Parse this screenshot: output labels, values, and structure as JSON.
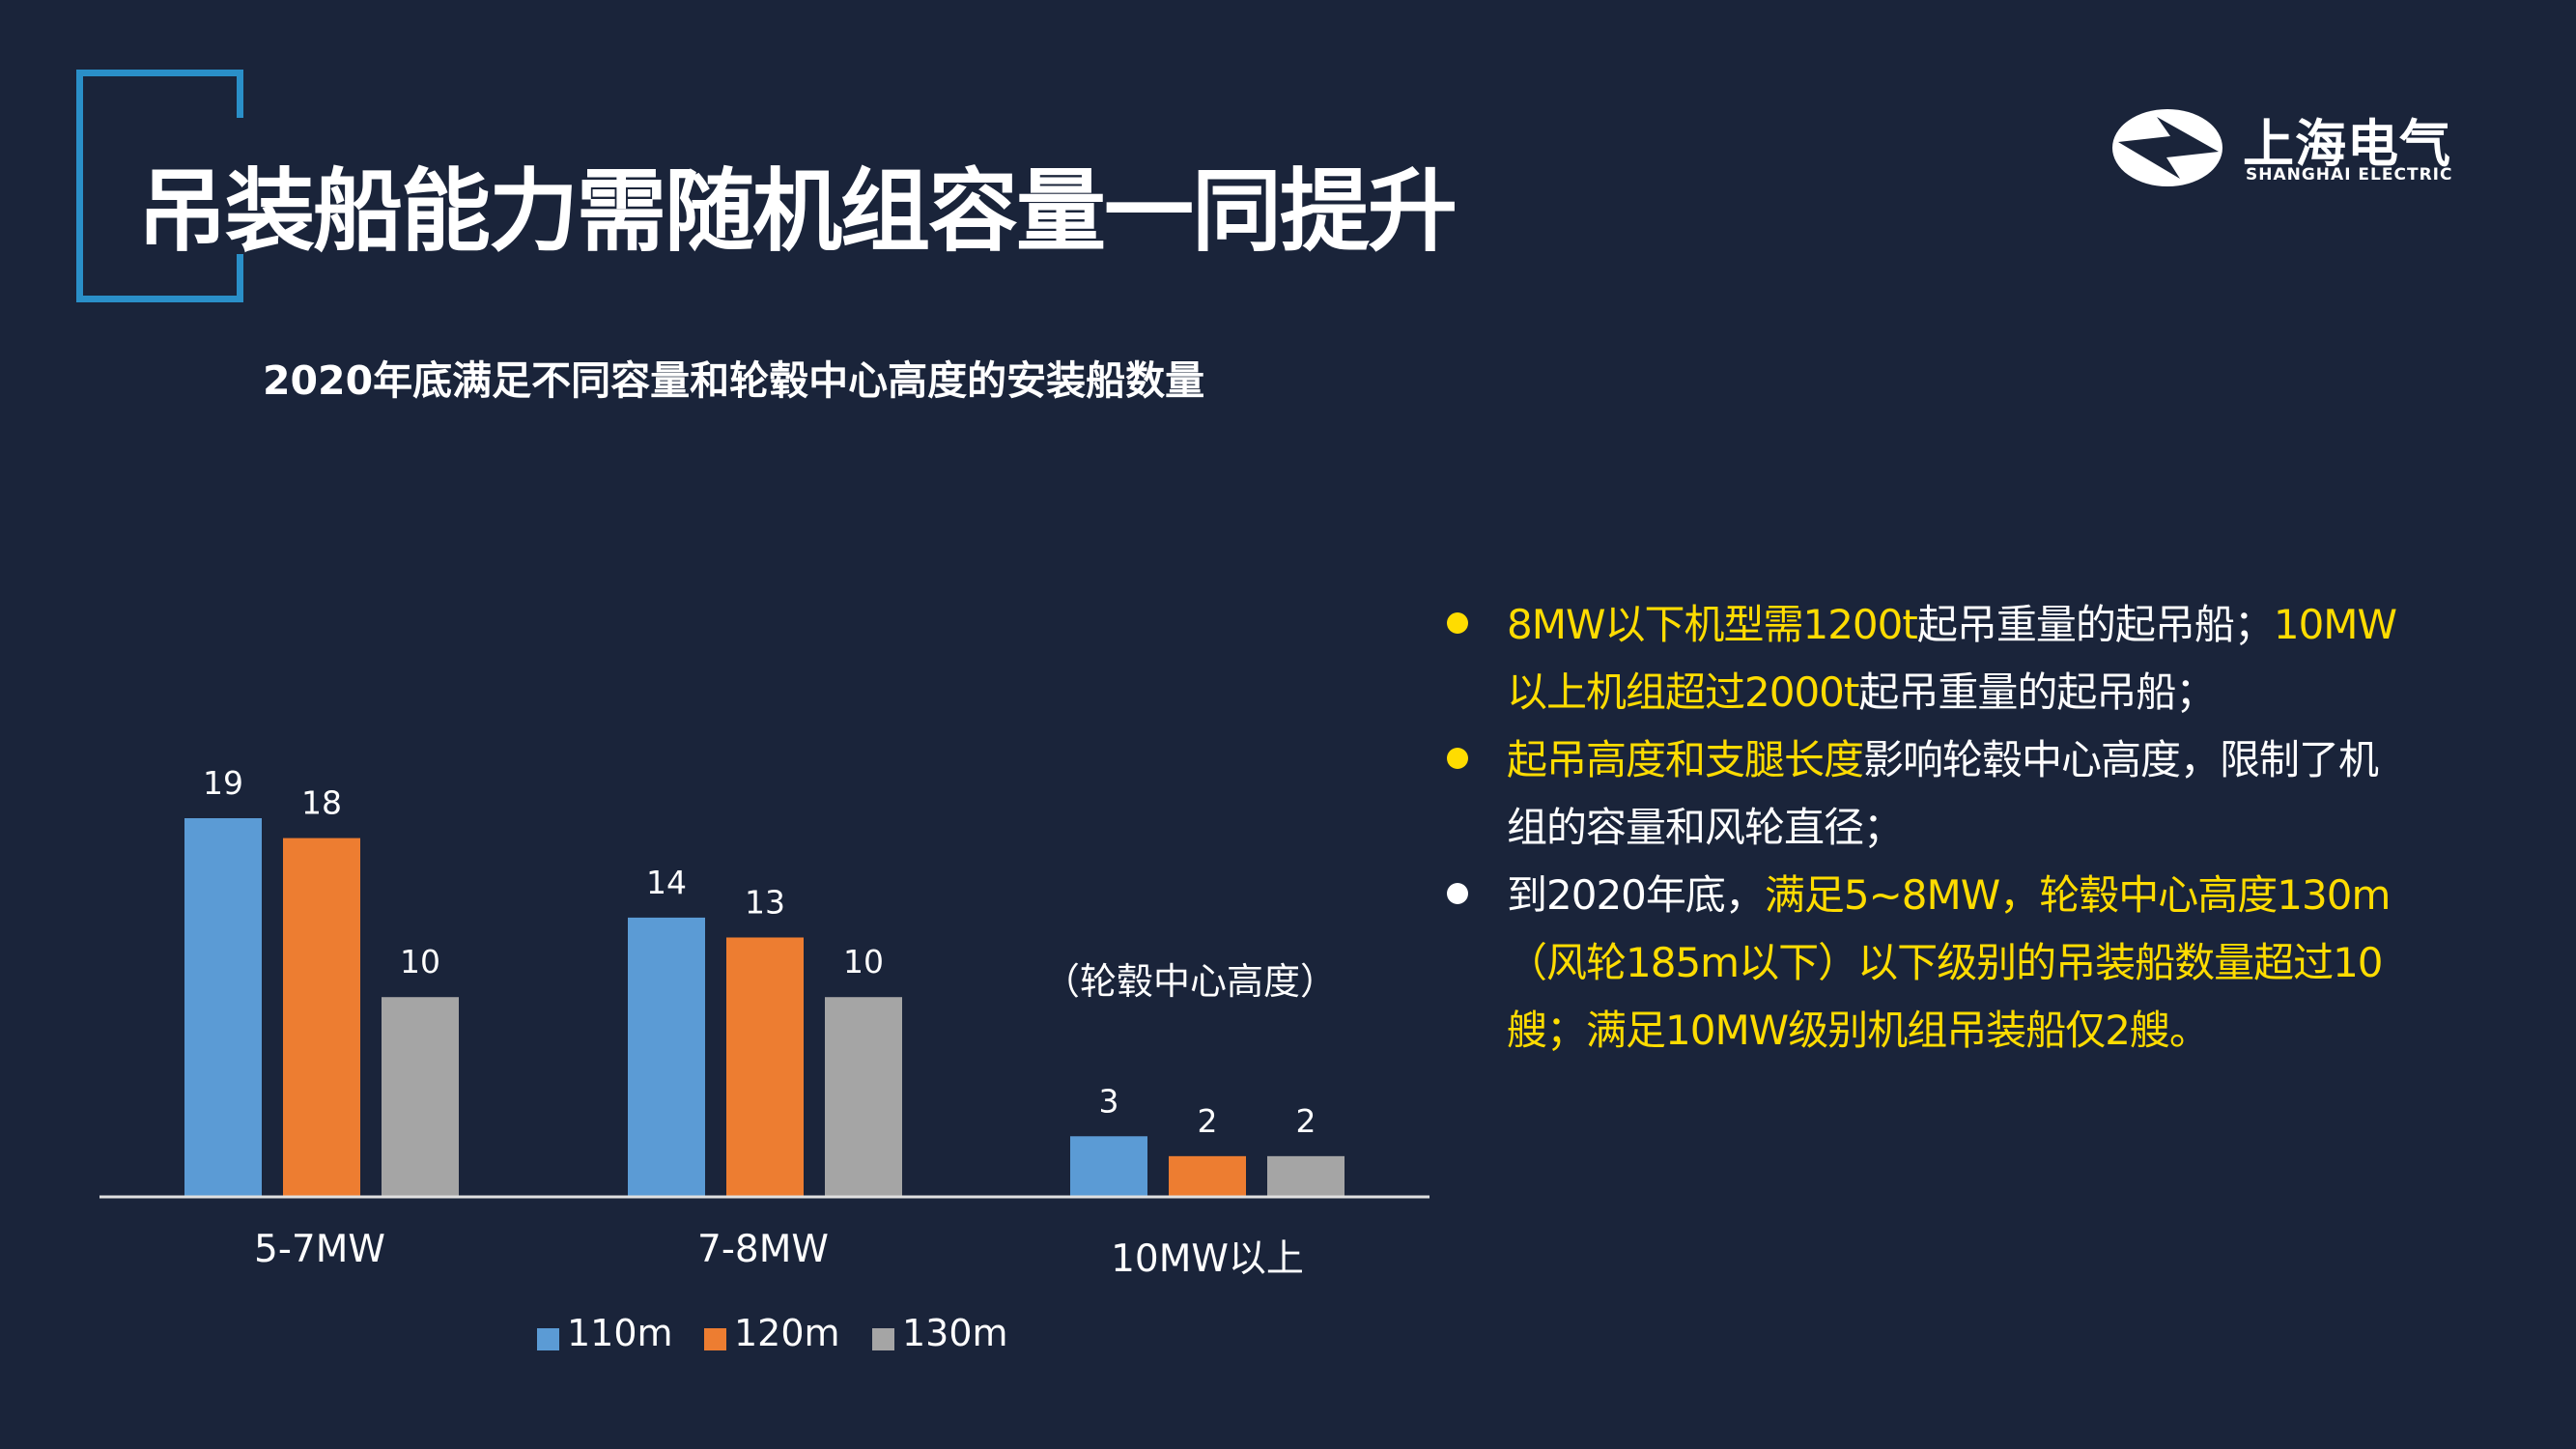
{
  "title": "吊装船能力需随机组容量一同提升",
  "logo": {
    "name_cn": "上海电气",
    "name_en": "SHANGHAI ELECTRIC"
  },
  "colors": {
    "background": "#1a243a",
    "bracket": "#2a8fc8",
    "series_110m": "#5b9bd5",
    "series_120m": "#ed7d31",
    "series_130m": "#a5a5a5",
    "highlight": "#ffdc00",
    "text": "#ffffff"
  },
  "chart_data": {
    "type": "bar",
    "title": "2020年底满足不同容量和轮毂中心高度的安装船数量",
    "categories": [
      "5-7MW",
      "7-8MW",
      "10MW以上"
    ],
    "series": [
      {
        "name": "110m",
        "color": "#5b9bd5",
        "values": [
          19,
          14,
          3
        ]
      },
      {
        "name": "120m",
        "color": "#ed7d31",
        "values": [
          18,
          13,
          2
        ]
      },
      {
        "name": "130m",
        "color": "#a5a5a5",
        "values": [
          10,
          10,
          2
        ]
      }
    ],
    "xlabel": "",
    "ylabel": "",
    "ylim": [
      0,
      19
    ],
    "grid": false,
    "data_labels": true,
    "legend_position": "bottom",
    "annotation": "（轮毂中心高度）"
  },
  "bullets": [
    {
      "dot": "yellow",
      "lines": [
        [
          {
            "text": "8MW以下机型需1200t",
            "color": "yellow"
          },
          {
            "text": "起吊重量的起吊船；",
            "color": "white"
          },
          {
            "text": "10MW",
            "color": "yellow"
          }
        ],
        [
          {
            "text": "以上机组超过2000t",
            "color": "yellow"
          },
          {
            "text": "起吊重量的起吊船；",
            "color": "white"
          }
        ]
      ]
    },
    {
      "dot": "yellow",
      "lines": [
        [
          {
            "text": "起吊高度和支腿长度",
            "color": "yellow"
          },
          {
            "text": "影响轮毂中心高度，限制了机",
            "color": "white"
          }
        ],
        [
          {
            "text": "组的容量和风轮直径；",
            "color": "white"
          }
        ]
      ]
    },
    {
      "dot": "white",
      "lines": [
        [
          {
            "text": "到2020年底，",
            "color": "white"
          },
          {
            "text": "满足5~8MW，轮毂中心高度130m",
            "color": "yellow"
          }
        ],
        [
          {
            "text": "（风轮185m以下）以下级别的吊装船数量超过10",
            "color": "yellow"
          }
        ],
        [
          {
            "text": "艘；满足10MW级别机组吊装船仅2艘。",
            "color": "yellow"
          }
        ]
      ]
    }
  ]
}
